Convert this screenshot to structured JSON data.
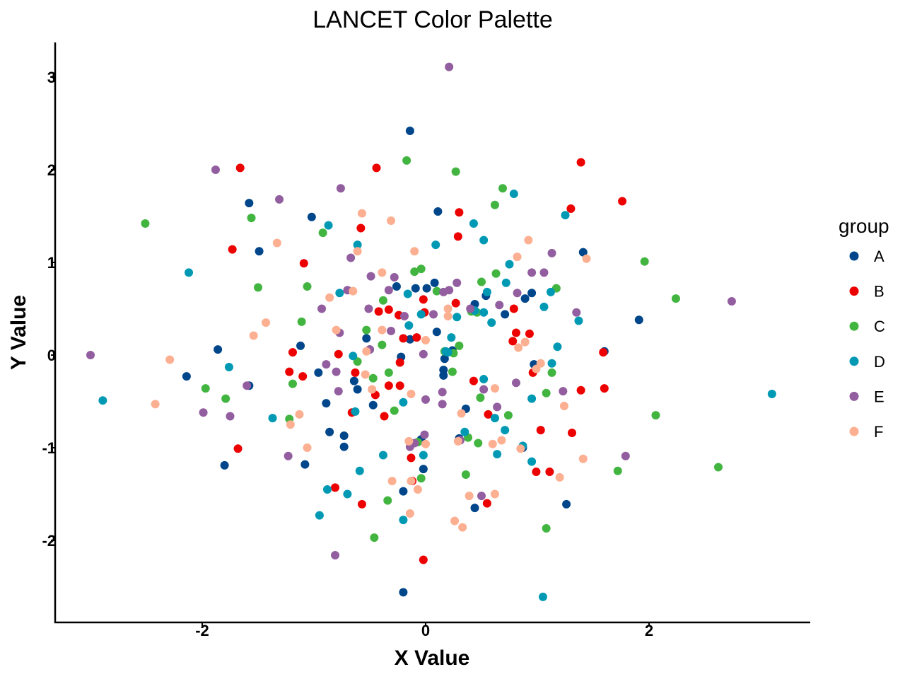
{
  "chart_data": {
    "type": "scatter",
    "title": "LANCET Color Palette",
    "xlabel": "X Value",
    "ylabel": "Y Value",
    "xlim": [
      -3.3,
      3.4
    ],
    "ylim": [
      -2.9,
      3.4
    ],
    "xticks": [
      -2,
      0,
      2
    ],
    "yticks": [
      -2,
      -1,
      0,
      1,
      2,
      3
    ],
    "grid": false,
    "legend": {
      "title": "group",
      "position": "right"
    },
    "series": [
      {
        "name": "A",
        "color": "#00468B",
        "points": [
          [
            -0.14,
            2.42
          ],
          [
            -1.58,
            1.64
          ],
          [
            -1.02,
            1.49
          ],
          [
            0.11,
            1.55
          ],
          [
            -1.49,
            1.12
          ],
          [
            1.41,
            1.11
          ],
          [
            -0.26,
            0.74
          ],
          [
            -0.09,
            0.72
          ],
          [
            0.01,
            0.72
          ],
          [
            0.08,
            0.78
          ],
          [
            0.54,
            0.64
          ],
          [
            0.44,
            0.55
          ],
          [
            0.71,
            0.44
          ],
          [
            0.89,
            0.61
          ],
          [
            0.95,
            0.67
          ],
          [
            1.91,
            0.38
          ],
          [
            -1.86,
            0.06
          ],
          [
            -1.12,
            0.1
          ],
          [
            -0.5,
            0.06
          ],
          [
            -0.53,
            0.18
          ],
          [
            0.1,
            0.25
          ],
          [
            0.24,
            0.05
          ],
          [
            0.17,
            -0.04
          ],
          [
            -0.22,
            -0.02
          ],
          [
            -0.14,
            0.17
          ],
          [
            0.97,
            -0.1
          ],
          [
            1.6,
            0.04
          ],
          [
            -2.14,
            -0.23
          ],
          [
            -1.58,
            -0.33
          ],
          [
            -0.96,
            -0.19
          ],
          [
            -0.64,
            -0.28
          ],
          [
            -0.61,
            -0.37
          ],
          [
            -0.89,
            -0.52
          ],
          [
            -0.47,
            -0.54
          ],
          [
            0.16,
            -0.16
          ],
          [
            0.16,
            -0.22
          ],
          [
            0.36,
            -0.58
          ],
          [
            0.3,
            -0.9
          ],
          [
            -0.86,
            -0.83
          ],
          [
            -0.73,
            -0.87
          ],
          [
            -0.73,
            -0.99
          ],
          [
            -0.04,
            -0.91
          ],
          [
            0.87,
            -1.0
          ],
          [
            -1.8,
            -1.19
          ],
          [
            -1.08,
            -1.18
          ],
          [
            -0.02,
            -1.23
          ],
          [
            -0.2,
            -1.47
          ],
          [
            0.44,
            -1.65
          ],
          [
            1.26,
            -1.61
          ],
          [
            -0.2,
            -2.56
          ]
        ]
      },
      {
        "name": "B",
        "color": "#ED0000",
        "points": [
          [
            -1.66,
            2.02
          ],
          [
            -0.44,
            2.02
          ],
          [
            1.39,
            2.08
          ],
          [
            1.76,
            1.66
          ],
          [
            1.3,
            1.58
          ],
          [
            0.3,
            1.54
          ],
          [
            -0.58,
            1.37
          ],
          [
            0.29,
            1.28
          ],
          [
            -1.73,
            1.14
          ],
          [
            -1.09,
            0.99
          ],
          [
            -0.33,
            0.49
          ],
          [
            -0.42,
            0.47
          ],
          [
            0.27,
            0.56
          ],
          [
            0.79,
            0.5
          ],
          [
            0.81,
            0.24
          ],
          [
            0.93,
            0.23
          ],
          [
            0.78,
            0.15
          ],
          [
            -0.02,
            0.6
          ],
          [
            -0.24,
            0.43
          ],
          [
            -0.01,
            0.46
          ],
          [
            -0.08,
            0.19
          ],
          [
            -0.2,
            0.18
          ],
          [
            -0.78,
            0.01
          ],
          [
            -1.19,
            0.03
          ],
          [
            -0.23,
            -0.08
          ],
          [
            0.96,
            -0.19
          ],
          [
            1.59,
            0.03
          ],
          [
            -1.22,
            -0.18
          ],
          [
            -1.1,
            -0.23
          ],
          [
            -0.63,
            -0.19
          ],
          [
            -0.33,
            -0.33
          ],
          [
            -0.23,
            -0.33
          ],
          [
            -0.45,
            -0.43
          ],
          [
            0.43,
            -0.28
          ],
          [
            1.39,
            -0.38
          ],
          [
            1.6,
            -0.36
          ],
          [
            -0.66,
            -0.62
          ],
          [
            -0.37,
            -0.66
          ],
          [
            0.56,
            -0.64
          ],
          [
            1.03,
            -0.81
          ],
          [
            1.31,
            -0.84
          ],
          [
            -1.68,
            -1.01
          ],
          [
            -0.13,
            -1.11
          ],
          [
            0.99,
            -1.26
          ],
          [
            1.11,
            -1.26
          ],
          [
            -0.12,
            -1.36
          ],
          [
            -0.81,
            -1.43
          ],
          [
            -0.57,
            -1.61
          ],
          [
            0.55,
            -1.6
          ],
          [
            -0.02,
            -2.21
          ]
        ]
      },
      {
        "name": "C",
        "color": "#42B540",
        "points": [
          [
            -0.17,
            2.1
          ],
          [
            0.27,
            1.98
          ],
          [
            0.69,
            1.8
          ],
          [
            0.62,
            1.62
          ],
          [
            -1.56,
            1.48
          ],
          [
            -2.51,
            1.42
          ],
          [
            -0.92,
            1.32
          ],
          [
            1.96,
            1.01
          ],
          [
            -0.04,
            0.93
          ],
          [
            -0.1,
            0.9
          ],
          [
            0.63,
            0.88
          ],
          [
            0.5,
            0.79
          ],
          [
            1.17,
            0.72
          ],
          [
            -1.5,
            0.73
          ],
          [
            -1.06,
            0.74
          ],
          [
            0.1,
            0.69
          ],
          [
            2.24,
            0.61
          ],
          [
            -0.38,
            0.59
          ],
          [
            0.41,
            0.47
          ],
          [
            0.46,
            0.46
          ],
          [
            -1.11,
            0.36
          ],
          [
            -0.53,
            0.27
          ],
          [
            -0.39,
            0.11
          ],
          [
            0.17,
            0.04
          ],
          [
            0.3,
            0.1
          ],
          [
            0.25,
            0.02
          ],
          [
            -0.61,
            -0.07
          ],
          [
            -0.47,
            -0.25
          ],
          [
            -0.33,
            -0.19
          ],
          [
            0.24,
            -0.18
          ],
          [
            1.13,
            -0.19
          ],
          [
            -1.19,
            -0.31
          ],
          [
            -1.97,
            -0.36
          ],
          [
            -1.79,
            -0.47
          ],
          [
            -1.22,
            -0.69
          ],
          [
            -0.28,
            -0.6
          ],
          [
            0.49,
            -0.46
          ],
          [
            1.08,
            -0.41
          ],
          [
            2.06,
            -0.65
          ],
          [
            0.74,
            -0.65
          ],
          [
            0.38,
            -0.89
          ],
          [
            0.47,
            -0.95
          ],
          [
            -0.07,
            -0.94
          ],
          [
            -0.04,
            -1.33
          ],
          [
            0.36,
            -1.29
          ],
          [
            1.72,
            -1.25
          ],
          [
            2.62,
            -1.21
          ],
          [
            -0.34,
            -1.57
          ],
          [
            1.08,
            -1.87
          ],
          [
            -0.46,
            -1.97
          ]
        ]
      },
      {
        "name": "D",
        "color": "#0099B4",
        "points": [
          [
            0.79,
            1.74
          ],
          [
            1.25,
            1.51
          ],
          [
            0.43,
            1.42
          ],
          [
            -0.87,
            1.4
          ],
          [
            0.52,
            1.24
          ],
          [
            -0.61,
            1.19
          ],
          [
            0.09,
            1.19
          ],
          [
            -2.12,
            0.89
          ],
          [
            0.75,
            0.98
          ],
          [
            0.72,
            0.78
          ],
          [
            0.55,
            0.68
          ],
          [
            1.12,
            0.68
          ],
          [
            -0.77,
            0.67
          ],
          [
            -0.16,
            0.66
          ],
          [
            1.06,
            0.52
          ],
          [
            -0.04,
            0.44
          ],
          [
            0.44,
            0.48
          ],
          [
            0.52,
            0.46
          ],
          [
            0.28,
            0.41
          ],
          [
            1.37,
            0.37
          ],
          [
            0.59,
            0.35
          ],
          [
            -0.15,
            0.32
          ],
          [
            0.23,
            0.19
          ],
          [
            1.18,
            0.09
          ],
          [
            -0.65,
            -0.01
          ],
          [
            0.18,
            0.04
          ],
          [
            0.2,
            0.03
          ],
          [
            1.13,
            -0.09
          ],
          [
            -1.76,
            -0.13
          ],
          [
            0.52,
            -0.26
          ],
          [
            0.95,
            -0.47
          ],
          [
            -0.2,
            -0.51
          ],
          [
            -2.89,
            -0.49
          ],
          [
            -0.63,
            -0.61
          ],
          [
            -1.37,
            -0.68
          ],
          [
            0.62,
            -0.68
          ],
          [
            0.71,
            -0.81
          ],
          [
            0.35,
            -0.83
          ],
          [
            0.87,
            -0.98
          ],
          [
            0.64,
            -1.07
          ],
          [
            -0.02,
            -1.08
          ],
          [
            -0.38,
            -1.08
          ],
          [
            0.95,
            -1.15
          ],
          [
            -0.59,
            -1.25
          ],
          [
            -0.88,
            -1.45
          ],
          [
            -0.7,
            -1.5
          ],
          [
            -0.95,
            -1.73
          ],
          [
            -0.2,
            -1.78
          ],
          [
            1.05,
            -2.61
          ],
          [
            3.1,
            -0.42
          ]
        ]
      },
      {
        "name": "E",
        "color": "#925E9F",
        "points": [
          [
            0.21,
            3.11
          ],
          [
            -1.88,
            2.0
          ],
          [
            -0.76,
            1.8
          ],
          [
            -1.31,
            1.68
          ],
          [
            -0.67,
            1.05
          ],
          [
            1.13,
            1.1
          ],
          [
            0.95,
            0.89
          ],
          [
            1.06,
            0.89
          ],
          [
            -0.28,
            0.84
          ],
          [
            -0.49,
            0.85
          ],
          [
            0.28,
            0.78
          ],
          [
            -0.33,
            0.7
          ],
          [
            -0.7,
            0.7
          ],
          [
            0.16,
            0.68
          ],
          [
            0.21,
            0.7
          ],
          [
            0.82,
            0.67
          ],
          [
            1.35,
            0.46
          ],
          [
            2.74,
            0.58
          ],
          [
            -0.93,
            0.5
          ],
          [
            -0.51,
            0.5
          ],
          [
            0.4,
            0.5
          ],
          [
            0.66,
            0.54
          ],
          [
            -0.19,
            0.42
          ],
          [
            0.07,
            0.44
          ],
          [
            -0.77,
            0.24
          ],
          [
            -0.31,
            0.26
          ],
          [
            -0.5,
            0.06
          ],
          [
            -0.02,
            0.01
          ],
          [
            -0.89,
            -0.1
          ],
          [
            -0.8,
            -0.18
          ],
          [
            -3.0,
            0.0
          ],
          [
            -1.6,
            -0.33
          ],
          [
            -0.78,
            -0.39
          ],
          [
            0.15,
            -0.4
          ],
          [
            0.52,
            -0.37
          ],
          [
            0.81,
            -0.3
          ],
          [
            1.23,
            -0.39
          ],
          [
            -1.99,
            -0.62
          ],
          [
            -1.75,
            -0.66
          ],
          [
            0.0,
            -0.48
          ],
          [
            0.15,
            -0.53
          ],
          [
            0.64,
            -0.56
          ],
          [
            -0.01,
            -0.86
          ],
          [
            -0.14,
            -0.99
          ],
          [
            1.79,
            -1.09
          ],
          [
            -1.23,
            -1.09
          ],
          [
            0.5,
            -1.52
          ],
          [
            -0.81,
            -2.16
          ],
          [
            0.31,
            -0.92
          ],
          [
            -0.1,
            -0.95
          ]
        ]
      },
      {
        "name": "F",
        "color": "#FDAF91",
        "points": [
          [
            -0.57,
            1.53
          ],
          [
            -0.31,
            1.45
          ],
          [
            0.92,
            1.24
          ],
          [
            -1.33,
            1.21
          ],
          [
            -0.61,
            1.12
          ],
          [
            -0.1,
            1.12
          ],
          [
            0.82,
            1.06
          ],
          [
            1.44,
            1.04
          ],
          [
            -0.39,
            0.89
          ],
          [
            -0.65,
            0.69
          ],
          [
            -0.86,
            0.62
          ],
          [
            0.2,
            0.5
          ],
          [
            0.2,
            0.42
          ],
          [
            -1.43,
            0.35
          ],
          [
            -1.54,
            0.21
          ],
          [
            -0.8,
            0.27
          ],
          [
            -0.39,
            0.27
          ],
          [
            0.0,
            0.16
          ],
          [
            0.83,
            0.08
          ],
          [
            0.89,
            0.14
          ],
          [
            -0.53,
            0.04
          ],
          [
            1.03,
            -0.09
          ],
          [
            0.99,
            -0.15
          ],
          [
            -2.29,
            -0.05
          ],
          [
            -0.54,
            -0.21
          ],
          [
            -0.48,
            -0.37
          ],
          [
            -0.13,
            -0.42
          ],
          [
            0.32,
            -0.63
          ],
          [
            0.62,
            -0.36
          ],
          [
            1.24,
            -0.55
          ],
          [
            -2.42,
            -0.53
          ],
          [
            -1.13,
            -0.64
          ],
          [
            -1.21,
            -0.75
          ],
          [
            -0.15,
            -0.93
          ],
          [
            0.0,
            -0.96
          ],
          [
            0.29,
            -0.93
          ],
          [
            0.6,
            -0.96
          ],
          [
            0.68,
            -0.92
          ],
          [
            0.85,
            -1.01
          ],
          [
            -1.06,
            -1.0
          ],
          [
            1.41,
            -1.12
          ],
          [
            1.2,
            -1.32
          ],
          [
            -0.13,
            -1.36
          ],
          [
            -0.3,
            -1.36
          ],
          [
            -0.07,
            -1.45
          ],
          [
            0.39,
            -1.52
          ],
          [
            0.62,
            -1.5
          ],
          [
            0.26,
            -1.79
          ],
          [
            0.33,
            -1.86
          ],
          [
            -0.14,
            -1.71
          ]
        ]
      }
    ]
  }
}
